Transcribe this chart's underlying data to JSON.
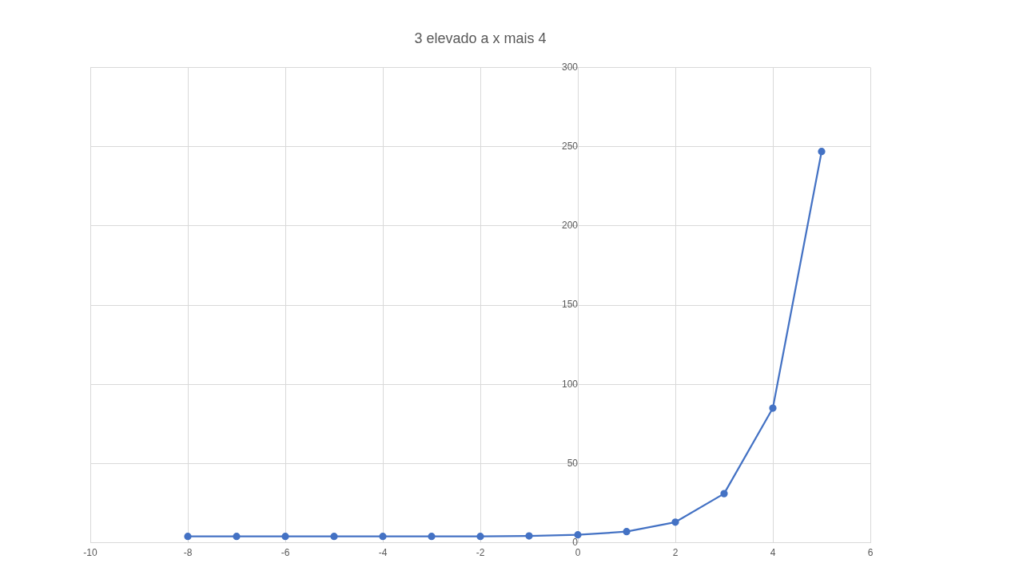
{
  "chart_data": {
    "type": "line",
    "title": "3 elevado a x mais 4",
    "x": [
      -8,
      -7,
      -6,
      -5,
      -4,
      -3,
      -2,
      -1,
      0,
      1,
      2,
      3,
      4,
      5
    ],
    "series": [
      {
        "color": "#4472c4",
        "values": [
          4,
          4,
          4,
          4,
          4,
          4,
          4,
          4.3,
          5,
          7,
          13,
          31,
          85,
          247
        ]
      }
    ],
    "xlim": [
      -10,
      6
    ],
    "xticks": [
      -10,
      -8,
      -6,
      -4,
      -2,
      0,
      2,
      4,
      6
    ],
    "ylim": [
      0,
      300
    ],
    "yticks": [
      0,
      50,
      100,
      150,
      200,
      250,
      300
    ],
    "grid": true,
    "marker": "circle",
    "line_style": "solid"
  }
}
